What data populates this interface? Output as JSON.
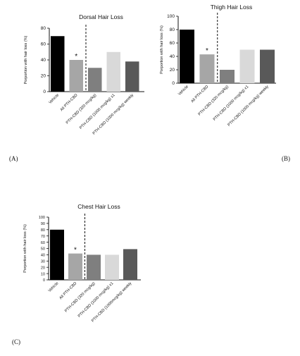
{
  "panel_labels": {
    "a": "(A)",
    "b": "(B)",
    "c": "(C)"
  },
  "colors": [
    "#000000",
    "#a6a6a6",
    "#7f7f7f",
    "#d9d9d9",
    "#595959"
  ],
  "chart_data": [
    {
      "type": "bar",
      "title": "Dorsal Hair Loss",
      "ylabel": "Porportion with hair loss (%)",
      "ylim": [
        0,
        80
      ],
      "yticks": [
        "0",
        "20",
        "40",
        "60",
        "80"
      ],
      "categories": [
        "Vehicle",
        "All PTH-CBD",
        "PTH-CBD (320 mcg/kg)",
        "PTH-CBD (1000 mcg/kg) x1",
        "PTH-CBD (1000 mcg/kg) weekly"
      ],
      "values": [
        70,
        40,
        30,
        50,
        38
      ],
      "annotation": "*",
      "annotation_category": "All PTH-CBD",
      "divider_after": "All PTH-CBD"
    },
    {
      "type": "bar",
      "title": "Thigh Hair Loss",
      "ylabel": "Porportion with hair loss (%)",
      "ylim": [
        0,
        100
      ],
      "yticks": [
        "0",
        "20",
        "40",
        "60",
        "80",
        "100"
      ],
      "categories": [
        "Vehicle",
        "All PTH-CBD",
        "PTH-CBD (320 mcg/kg)",
        "PTH-CBD (1000 mcg/kg) x1",
        "PTH-CBD (1000 mcg/kg) weekly"
      ],
      "values": [
        80,
        43,
        20,
        50,
        50
      ],
      "annotation": "*",
      "annotation_category": "All PTH-CBD",
      "divider_after": "All PTH-CBD"
    },
    {
      "type": "bar",
      "title": "Chest Hair Loss",
      "ylabel": "Porportion with hair loss (%)",
      "ylim": [
        0,
        100
      ],
      "yticks": [
        "0",
        "10",
        "20",
        "30",
        "40",
        "50",
        "60",
        "70",
        "80",
        "90",
        "100"
      ],
      "categories": [
        "Vehicle",
        "All PTH-CBD",
        "PTH-CBD (320 mcg/kg)",
        "PTH-CBD (1000 mcg/kg) x1",
        "PTH-CBD (1000mcg/kg) weekly"
      ],
      "values": [
        80,
        42,
        40,
        40,
        49
      ],
      "annotation": "*",
      "annotation_category": "All PTH-CBD",
      "divider_after": "All PTH-CBD"
    }
  ]
}
